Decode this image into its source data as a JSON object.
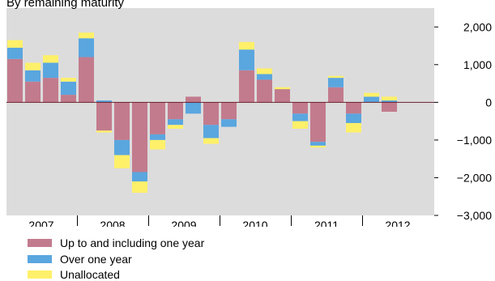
{
  "colors": {
    "plot_bg": "#dcdcdc",
    "up_to_one_year": "#c27b8d",
    "over_one_year": "#5aa6df",
    "unallocated": "#fff06a"
  },
  "chart_data": {
    "type": "bar",
    "subtitle": "By remaining maturity",
    "stacked": true,
    "frequency": "quarterly",
    "years": [
      "2007",
      "2008",
      "2009",
      "2010",
      "2011",
      "2012"
    ],
    "ylim": [
      -3000,
      2500
    ],
    "y_ticks": [
      2000,
      1000,
      0,
      -1000,
      -2000,
      -3000
    ],
    "y_tick_labels": [
      "2,000",
      "1,000",
      "0",
      "−1,000",
      "−2,000",
      "−3,000"
    ],
    "y_axis_position": "right",
    "grid": false,
    "legend_position": "bottom-left",
    "series": [
      {
        "name": "Up to and including one year",
        "color": "#c27b8d",
        "values": [
          1150,
          550,
          650,
          200,
          1200,
          -750,
          -1000,
          -1850,
          -850,
          -450,
          150,
          -600,
          -450,
          850,
          600,
          350,
          -300,
          -1050,
          400,
          -300,
          0,
          -250
        ]
      },
      {
        "name": "Over one year",
        "color": "#5aa6df",
        "values": [
          300,
          300,
          400,
          350,
          500,
          50,
          -400,
          -250,
          -150,
          -150,
          -300,
          -350,
          -200,
          550,
          150,
          0,
          -200,
          -100,
          250,
          -250,
          150,
          50
        ]
      },
      {
        "name": "Unallocated",
        "color": "#fff06a",
        "values": [
          200,
          200,
          200,
          100,
          150,
          -50,
          -350,
          -300,
          -250,
          -100,
          0,
          -150,
          0,
          200,
          150,
          50,
          -200,
          -50,
          50,
          -250,
          100,
          100
        ]
      }
    ]
  }
}
